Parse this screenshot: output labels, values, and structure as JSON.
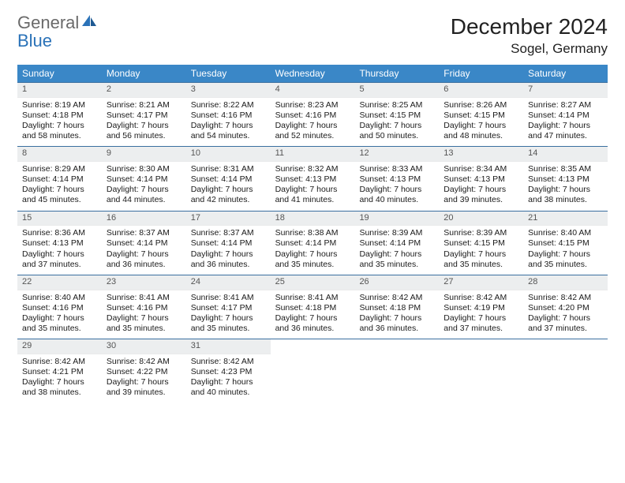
{
  "logo": {
    "general": "General",
    "blue": "Blue"
  },
  "title": "December 2024",
  "location": "Sogel, Germany",
  "colors": {
    "header_bg": "#3a87c7",
    "header_text": "#ffffff",
    "row_border": "#3a6fa0",
    "daynum_bg": "#eceeef",
    "daynum_text": "#555555",
    "body_text": "#1a1a1a",
    "logo_gray": "#6a6a6a",
    "logo_blue": "#2a72b8"
  },
  "weekdays": [
    "Sunday",
    "Monday",
    "Tuesday",
    "Wednesday",
    "Thursday",
    "Friday",
    "Saturday"
  ],
  "weeks": [
    [
      {
        "n": "1",
        "sunrise": "Sunrise: 8:19 AM",
        "sunset": "Sunset: 4:18 PM",
        "daylight": "Daylight: 7 hours and 58 minutes."
      },
      {
        "n": "2",
        "sunrise": "Sunrise: 8:21 AM",
        "sunset": "Sunset: 4:17 PM",
        "daylight": "Daylight: 7 hours and 56 minutes."
      },
      {
        "n": "3",
        "sunrise": "Sunrise: 8:22 AM",
        "sunset": "Sunset: 4:16 PM",
        "daylight": "Daylight: 7 hours and 54 minutes."
      },
      {
        "n": "4",
        "sunrise": "Sunrise: 8:23 AM",
        "sunset": "Sunset: 4:16 PM",
        "daylight": "Daylight: 7 hours and 52 minutes."
      },
      {
        "n": "5",
        "sunrise": "Sunrise: 8:25 AM",
        "sunset": "Sunset: 4:15 PM",
        "daylight": "Daylight: 7 hours and 50 minutes."
      },
      {
        "n": "6",
        "sunrise": "Sunrise: 8:26 AM",
        "sunset": "Sunset: 4:15 PM",
        "daylight": "Daylight: 7 hours and 48 minutes."
      },
      {
        "n": "7",
        "sunrise": "Sunrise: 8:27 AM",
        "sunset": "Sunset: 4:14 PM",
        "daylight": "Daylight: 7 hours and 47 minutes."
      }
    ],
    [
      {
        "n": "8",
        "sunrise": "Sunrise: 8:29 AM",
        "sunset": "Sunset: 4:14 PM",
        "daylight": "Daylight: 7 hours and 45 minutes."
      },
      {
        "n": "9",
        "sunrise": "Sunrise: 8:30 AM",
        "sunset": "Sunset: 4:14 PM",
        "daylight": "Daylight: 7 hours and 44 minutes."
      },
      {
        "n": "10",
        "sunrise": "Sunrise: 8:31 AM",
        "sunset": "Sunset: 4:14 PM",
        "daylight": "Daylight: 7 hours and 42 minutes."
      },
      {
        "n": "11",
        "sunrise": "Sunrise: 8:32 AM",
        "sunset": "Sunset: 4:13 PM",
        "daylight": "Daylight: 7 hours and 41 minutes."
      },
      {
        "n": "12",
        "sunrise": "Sunrise: 8:33 AM",
        "sunset": "Sunset: 4:13 PM",
        "daylight": "Daylight: 7 hours and 40 minutes."
      },
      {
        "n": "13",
        "sunrise": "Sunrise: 8:34 AM",
        "sunset": "Sunset: 4:13 PM",
        "daylight": "Daylight: 7 hours and 39 minutes."
      },
      {
        "n": "14",
        "sunrise": "Sunrise: 8:35 AM",
        "sunset": "Sunset: 4:13 PM",
        "daylight": "Daylight: 7 hours and 38 minutes."
      }
    ],
    [
      {
        "n": "15",
        "sunrise": "Sunrise: 8:36 AM",
        "sunset": "Sunset: 4:13 PM",
        "daylight": "Daylight: 7 hours and 37 minutes."
      },
      {
        "n": "16",
        "sunrise": "Sunrise: 8:37 AM",
        "sunset": "Sunset: 4:14 PM",
        "daylight": "Daylight: 7 hours and 36 minutes."
      },
      {
        "n": "17",
        "sunrise": "Sunrise: 8:37 AM",
        "sunset": "Sunset: 4:14 PM",
        "daylight": "Daylight: 7 hours and 36 minutes."
      },
      {
        "n": "18",
        "sunrise": "Sunrise: 8:38 AM",
        "sunset": "Sunset: 4:14 PM",
        "daylight": "Daylight: 7 hours and 35 minutes."
      },
      {
        "n": "19",
        "sunrise": "Sunrise: 8:39 AM",
        "sunset": "Sunset: 4:14 PM",
        "daylight": "Daylight: 7 hours and 35 minutes."
      },
      {
        "n": "20",
        "sunrise": "Sunrise: 8:39 AM",
        "sunset": "Sunset: 4:15 PM",
        "daylight": "Daylight: 7 hours and 35 minutes."
      },
      {
        "n": "21",
        "sunrise": "Sunrise: 8:40 AM",
        "sunset": "Sunset: 4:15 PM",
        "daylight": "Daylight: 7 hours and 35 minutes."
      }
    ],
    [
      {
        "n": "22",
        "sunrise": "Sunrise: 8:40 AM",
        "sunset": "Sunset: 4:16 PM",
        "daylight": "Daylight: 7 hours and 35 minutes."
      },
      {
        "n": "23",
        "sunrise": "Sunrise: 8:41 AM",
        "sunset": "Sunset: 4:16 PM",
        "daylight": "Daylight: 7 hours and 35 minutes."
      },
      {
        "n": "24",
        "sunrise": "Sunrise: 8:41 AM",
        "sunset": "Sunset: 4:17 PM",
        "daylight": "Daylight: 7 hours and 35 minutes."
      },
      {
        "n": "25",
        "sunrise": "Sunrise: 8:41 AM",
        "sunset": "Sunset: 4:18 PM",
        "daylight": "Daylight: 7 hours and 36 minutes."
      },
      {
        "n": "26",
        "sunrise": "Sunrise: 8:42 AM",
        "sunset": "Sunset: 4:18 PM",
        "daylight": "Daylight: 7 hours and 36 minutes."
      },
      {
        "n": "27",
        "sunrise": "Sunrise: 8:42 AM",
        "sunset": "Sunset: 4:19 PM",
        "daylight": "Daylight: 7 hours and 37 minutes."
      },
      {
        "n": "28",
        "sunrise": "Sunrise: 8:42 AM",
        "sunset": "Sunset: 4:20 PM",
        "daylight": "Daylight: 7 hours and 37 minutes."
      }
    ],
    [
      {
        "n": "29",
        "sunrise": "Sunrise: 8:42 AM",
        "sunset": "Sunset: 4:21 PM",
        "daylight": "Daylight: 7 hours and 38 minutes."
      },
      {
        "n": "30",
        "sunrise": "Sunrise: 8:42 AM",
        "sunset": "Sunset: 4:22 PM",
        "daylight": "Daylight: 7 hours and 39 minutes."
      },
      {
        "n": "31",
        "sunrise": "Sunrise: 8:42 AM",
        "sunset": "Sunset: 4:23 PM",
        "daylight": "Daylight: 7 hours and 40 minutes."
      },
      {
        "empty": true
      },
      {
        "empty": true
      },
      {
        "empty": true
      },
      {
        "empty": true
      }
    ]
  ]
}
